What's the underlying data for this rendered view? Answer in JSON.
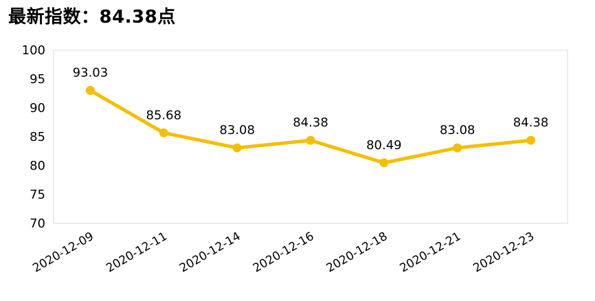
{
  "title": "最新指数：84.38点",
  "chart_data": {
    "type": "line",
    "title": "最新指数：84.38点",
    "xlabel": "",
    "ylabel": "",
    "categories": [
      "2020-12-09",
      "2020-12-11",
      "2020-12-14",
      "2020-12-16",
      "2020-12-18",
      "2020-12-21",
      "2020-12-23"
    ],
    "series": [
      {
        "values": [
          93.03,
          85.68,
          83.08,
          84.38,
          80.49,
          83.08,
          84.38
        ],
        "data_labels": [
          "93.03",
          "85.68",
          "83.08",
          "84.38",
          "80.49",
          "83.08",
          "84.38"
        ]
      }
    ],
    "ylim": [
      70,
      100
    ],
    "yticks": [
      "100",
      "95",
      "90",
      "85",
      "80",
      "75",
      "70"
    ],
    "grid": false,
    "legend": "none",
    "colors": {
      "line": "#F5BE00",
      "axis_border": "#D9D9D9",
      "text": "#000000"
    }
  }
}
